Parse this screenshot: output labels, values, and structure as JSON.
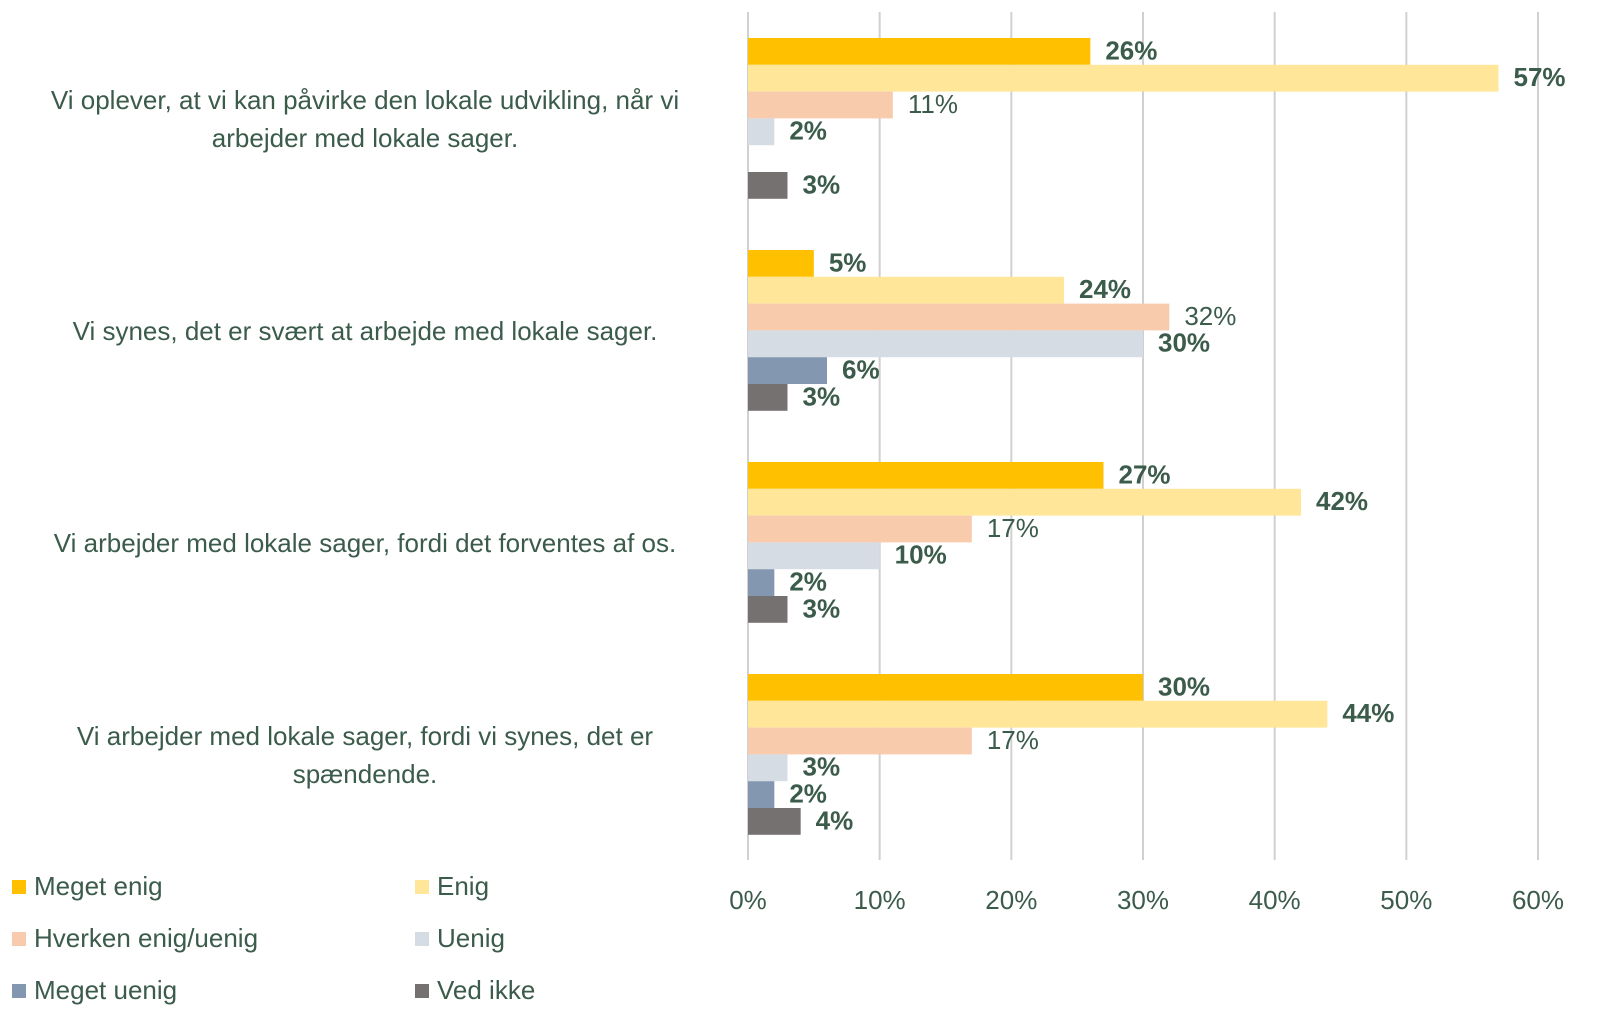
{
  "chart_data": {
    "type": "bar",
    "orientation": "horizontal",
    "categories": [
      "Vi oplever, at vi kan påvirke den lokale udvikling, når vi arbejder med lokale sager.",
      "Vi synes, det er svært at arbejde med lokale sager.",
      "Vi arbejder med lokale sager, fordi det forventes af os.",
      "Vi arbejder med lokale sager, fordi vi synes, det er spændende."
    ],
    "series": [
      {
        "name": "Meget enig",
        "color": "#ffc000",
        "values": [
          26,
          5,
          27,
          30
        ],
        "value_labels": [
          "26%",
          "5%",
          "27%",
          "30%"
        ]
      },
      {
        "name": "Enig",
        "color": "#ffe699",
        "values": [
          57,
          24,
          42,
          44
        ],
        "value_labels": [
          "57%",
          "24%",
          "42%",
          "44%"
        ]
      },
      {
        "name": "Hverken enig/uenig",
        "color": "#f8cbad",
        "values": [
          11,
          32,
          17,
          17
        ],
        "value_labels": [
          "11%",
          "32%",
          "17%",
          "17%"
        ]
      },
      {
        "name": "Uenig",
        "color": "#d6dce4",
        "values": [
          2,
          30,
          10,
          3
        ],
        "value_labels": [
          "2%",
          "30%",
          "10%",
          "3%"
        ]
      },
      {
        "name": "Meget uenig",
        "color": "#8497b0",
        "values": [
          null,
          6,
          2,
          2
        ],
        "value_labels": [
          null,
          "6%",
          "2%",
          "2%"
        ]
      },
      {
        "name": "Ved ikke",
        "color": "#767171",
        "values": [
          3,
          3,
          3,
          4
        ],
        "value_labels": [
          "3%",
          "3%",
          "3%",
          "4%"
        ]
      }
    ],
    "xlim": [
      0,
      60
    ],
    "xticks": [
      {
        "value": 0,
        "label": "0%"
      },
      {
        "value": 10,
        "label": "10%"
      },
      {
        "value": 20,
        "label": "20%"
      },
      {
        "value": 30,
        "label": "30%"
      },
      {
        "value": 40,
        "label": "40%"
      },
      {
        "value": 50,
        "label": "50%"
      },
      {
        "value": 60,
        "label": "60%"
      }
    ],
    "grid": true,
    "legend": "bottom-left"
  }
}
